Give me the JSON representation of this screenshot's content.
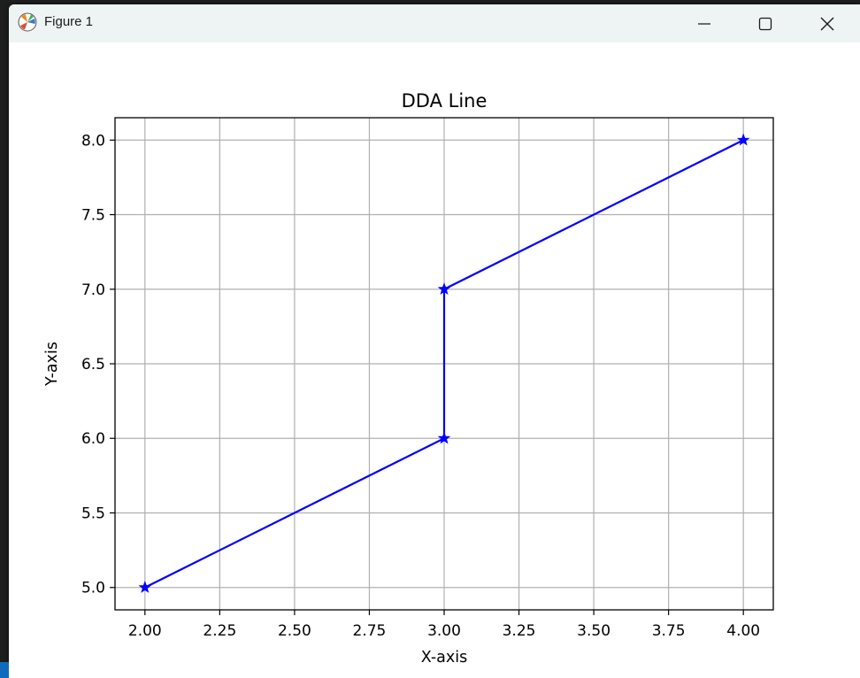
{
  "window": {
    "title": "Figure 1",
    "icon": "matplotlib-icon",
    "controls": [
      "minimize-icon",
      "maximize-icon",
      "close-icon"
    ]
  },
  "colors": {
    "line": "#0000ff",
    "grid": "#b0b0b0",
    "titlebar": "#eef4f4"
  },
  "chart_data": {
    "type": "line",
    "title": "DDA Line",
    "xlabel": "X-axis",
    "ylabel": "Y-axis",
    "xlim": [
      1.9,
      4.1
    ],
    "ylim": [
      4.85,
      8.15
    ],
    "xticks": [
      2.0,
      2.25,
      2.5,
      2.75,
      3.0,
      3.25,
      3.5,
      3.75,
      4.0
    ],
    "xtick_labels": [
      "2.00",
      "2.25",
      "2.50",
      "2.75",
      "3.00",
      "3.25",
      "3.50",
      "3.75",
      "4.00"
    ],
    "yticks": [
      5.0,
      5.5,
      6.0,
      6.5,
      7.0,
      7.5,
      8.0
    ],
    "ytick_labels": [
      "5.0",
      "5.5",
      "6.0",
      "6.5",
      "7.0",
      "7.5",
      "8.0"
    ],
    "grid": true,
    "marker": "star",
    "series": [
      {
        "x": [
          2,
          3,
          3,
          4
        ],
        "y": [
          5,
          6,
          7,
          8
        ]
      }
    ]
  }
}
